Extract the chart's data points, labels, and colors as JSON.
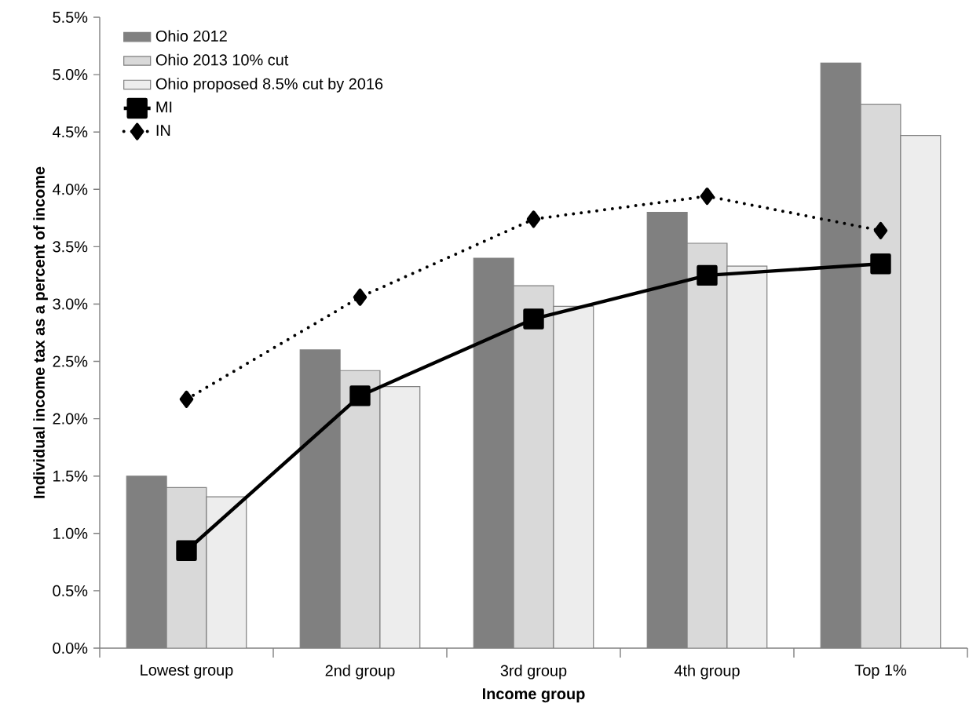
{
  "chart_data": {
    "type": "bar",
    "xlabel": "Income group",
    "ylabel": "Individual income tax as a percent of income",
    "categories": [
      "Lowest group",
      "2nd group",
      "3rd group",
      "4th group",
      "Top 1%"
    ],
    "series": [
      {
        "name": "Ohio 2012",
        "color": "#808080",
        "values": [
          1.5,
          2.6,
          3.4,
          3.8,
          5.1
        ]
      },
      {
        "name": "Ohio 2013 10% cut",
        "color": "#d9d9d9",
        "values": [
          1.4,
          2.42,
          3.16,
          3.53,
          4.74
        ]
      },
      {
        "name": "Ohio proposed 8.5% cut by 2016",
        "color": "#ededed",
        "values": [
          1.32,
          2.28,
          2.98,
          3.33,
          4.47
        ]
      },
      {
        "name": "MI",
        "type": "line",
        "color": "#000000",
        "marker": "square",
        "line_style": "solid",
        "values": [
          0.85,
          2.2,
          2.87,
          3.25,
          3.35
        ]
      },
      {
        "name": "IN",
        "type": "line",
        "color": "#000000",
        "marker": "diamond",
        "line_style": "dotted",
        "values": [
          2.17,
          3.06,
          3.74,
          3.94,
          3.64
        ]
      }
    ],
    "ylim": [
      0,
      5.5
    ],
    "yticks": [
      {
        "value": 0,
        "label": "0.0%"
      },
      {
        "value": 0.5,
        "label": "0.5%"
      },
      {
        "value": 1,
        "label": "1.0%"
      },
      {
        "value": 1.5,
        "label": "1.5%"
      },
      {
        "value": 2,
        "label": "2.0%"
      },
      {
        "value": 2.5,
        "label": "2.5%"
      },
      {
        "value": 3,
        "label": "3.0%"
      },
      {
        "value": 3.5,
        "label": "3.5%"
      },
      {
        "value": 4,
        "label": "4.0%"
      },
      {
        "value": 4.5,
        "label": "4.5%"
      },
      {
        "value": 5,
        "label": "5.0%"
      },
      {
        "value": 5.5,
        "label": "5.5%"
      }
    ],
    "grid": false,
    "legend": "top left"
  }
}
